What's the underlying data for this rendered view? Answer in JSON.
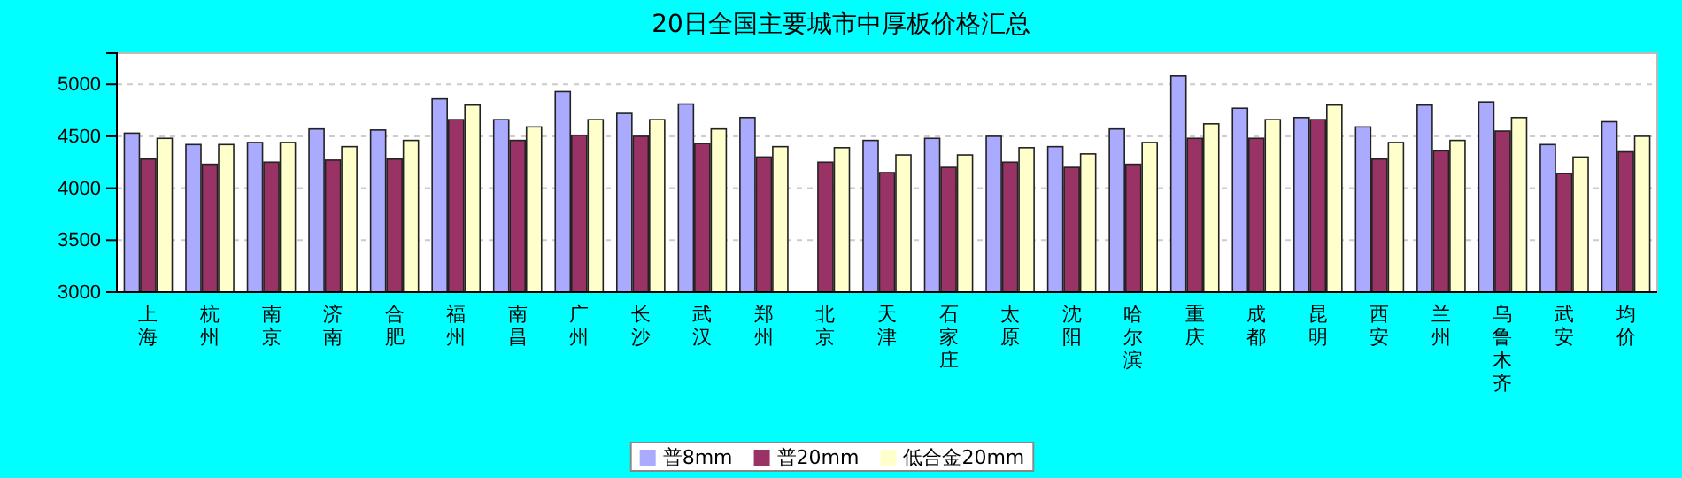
{
  "chart_data": {
    "type": "bar",
    "title": "20日全国主要城市中厚板价格汇总",
    "categories": [
      "上海",
      "杭州",
      "南京",
      "济南",
      "合肥",
      "福州",
      "南昌",
      "广州",
      "长沙",
      "武汉",
      "郑州",
      "北京",
      "天津",
      "石家庄",
      "太原",
      "沈阳",
      "哈尔滨",
      "重庆",
      "成都",
      "昆明",
      "西安",
      "兰州",
      "乌鲁木齐",
      "武安",
      "均价"
    ],
    "series": [
      {
        "name": "普8mm",
        "color": "#aaaaff",
        "values": [
          4530,
          4420,
          4440,
          4570,
          4560,
          4860,
          4660,
          4930,
          4720,
          4810,
          4680,
          null,
          4460,
          4480,
          4500,
          4400,
          4570,
          5080,
          4770,
          4680,
          4590,
          4800,
          4830,
          4420,
          4640
        ]
      },
      {
        "name": "普20mm",
        "color": "#993366",
        "values": [
          4280,
          4230,
          4250,
          4270,
          4280,
          4660,
          4460,
          4510,
          4500,
          4430,
          4300,
          4250,
          4150,
          4200,
          4250,
          4200,
          4230,
          4480,
          4480,
          4660,
          4280,
          4360,
          4550,
          4140,
          4350
        ]
      },
      {
        "name": "低合金20mm",
        "color": "#ffffcc",
        "values": [
          4480,
          4420,
          4440,
          4400,
          4460,
          4800,
          4590,
          4660,
          4660,
          4570,
          4400,
          4390,
          4320,
          4320,
          4390,
          4330,
          4440,
          4620,
          4660,
          4800,
          4440,
          4460,
          4680,
          4300,
          4500
        ]
      }
    ],
    "ylim": [
      3000,
      5300
    ],
    "yticks": [
      3000,
      3500,
      4000,
      4500,
      5000
    ],
    "grid": "y",
    "legend": "bottom"
  }
}
